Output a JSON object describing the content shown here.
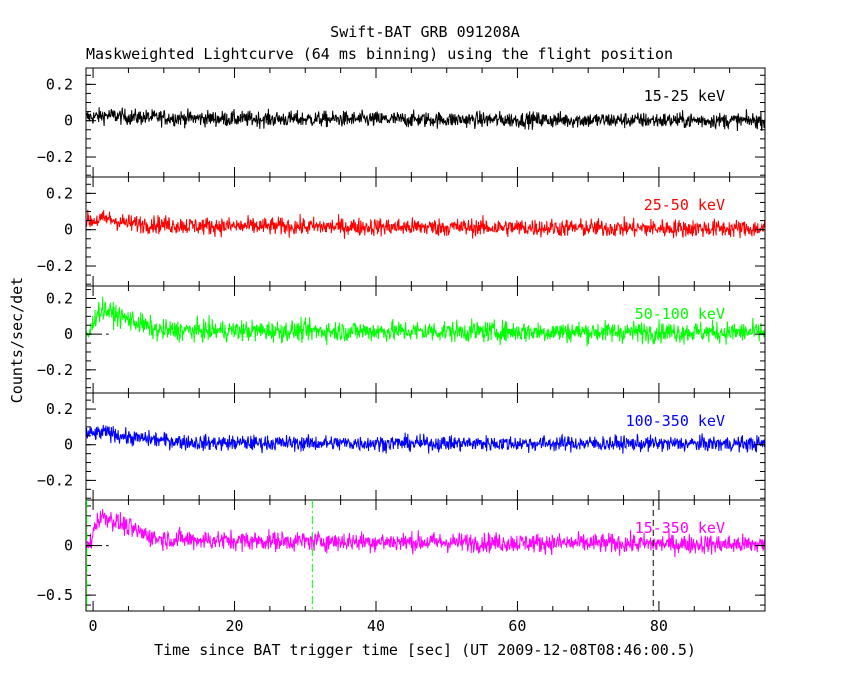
{
  "chart_data": {
    "type": "line",
    "title": "Swift-BAT GRB 091208A",
    "subtitle": "Maskweighted Lightcurve (64 ms binning) using the flight position",
    "xlabel": "Time since BAT trigger time [sec] (UT 2009-12-08T08:46:00.5)",
    "ylabel": "Counts/sec/det",
    "xlim": [
      -1,
      95
    ],
    "x_ticks": [
      0,
      20,
      40,
      60,
      80
    ],
    "x_tick_labels": [
      "0",
      "20",
      "40",
      "60",
      "80"
    ],
    "vlines": [
      {
        "x": -0.9,
        "color": "#00ff00",
        "style": "dash-dot"
      },
      {
        "x": 31.0,
        "color": "#00ff00",
        "style": "dash-dot"
      },
      {
        "x": 79.2,
        "color": "#000000",
        "style": "dashed"
      }
    ],
    "panels": [
      {
        "band": "15-25 keV",
        "color": "#000000",
        "ylim": [
          -0.31,
          0.29
        ],
        "yticks": [
          0.2,
          0,
          -0.2
        ],
        "ytick_labels": [
          "0.2",
          "0",
          "−0.2"
        ],
        "zero_line": false,
        "profile": [
          [
            0,
            0.02
          ],
          [
            2,
            0.03
          ],
          [
            5,
            0.02
          ],
          [
            20,
            0.01
          ],
          [
            95,
            0.0
          ]
        ],
        "noise": 0.022
      },
      {
        "band": "25-50 keV",
        "color": "#ff0000",
        "ylim": [
          -0.31,
          0.29
        ],
        "yticks": [
          0.2,
          0,
          -0.2
        ],
        "ytick_labels": [
          "0.2",
          "0",
          "−0.2"
        ],
        "zero_line": false,
        "profile": [
          [
            0,
            0.05
          ],
          [
            2,
            0.06
          ],
          [
            5,
            0.035
          ],
          [
            15,
            0.02
          ],
          [
            95,
            0.005
          ]
        ],
        "noise": 0.025
      },
      {
        "band": "50-100 keV",
        "color": "#00ff00",
        "ylim": [
          -0.33,
          0.27
        ],
        "yticks": [
          0.2,
          0,
          -0.2
        ],
        "ytick_labels": [
          "0.2",
          "0",
          "−0.2"
        ],
        "zero_line": true,
        "profile": [
          [
            -0.5,
            0.0
          ],
          [
            0.5,
            0.12
          ],
          [
            1.5,
            0.14
          ],
          [
            3,
            0.11
          ],
          [
            6,
            0.07
          ],
          [
            9,
            0.02
          ],
          [
            95,
            0.01
          ]
        ],
        "noise": 0.03
      },
      {
        "band": "100-350 keV",
        "color": "#0000ff",
        "ylim": [
          -0.31,
          0.29
        ],
        "yticks": [
          0.2,
          0,
          -0.2
        ],
        "ytick_labels": [
          "0.2",
          "0",
          "−0.2"
        ],
        "zero_line": false,
        "profile": [
          [
            0,
            0.06
          ],
          [
            2,
            0.07
          ],
          [
            5,
            0.04
          ],
          [
            15,
            0.01
          ],
          [
            95,
            0.005
          ]
        ],
        "noise": 0.022
      },
      {
        "band": "15-350 keV",
        "color": "#ff00ff",
        "ylim": [
          -0.66,
          0.46
        ],
        "yticks": [
          0,
          -0.5
        ],
        "ytick_labels": [
          "0",
          "−0.5"
        ],
        "zero_line": true,
        "profile": [
          [
            -0.5,
            0.0
          ],
          [
            0.5,
            0.25
          ],
          [
            1.5,
            0.3
          ],
          [
            3,
            0.25
          ],
          [
            6,
            0.15
          ],
          [
            9,
            0.07
          ],
          [
            20,
            0.05
          ],
          [
            95,
            0.01
          ]
        ],
        "noise": 0.05
      }
    ]
  }
}
